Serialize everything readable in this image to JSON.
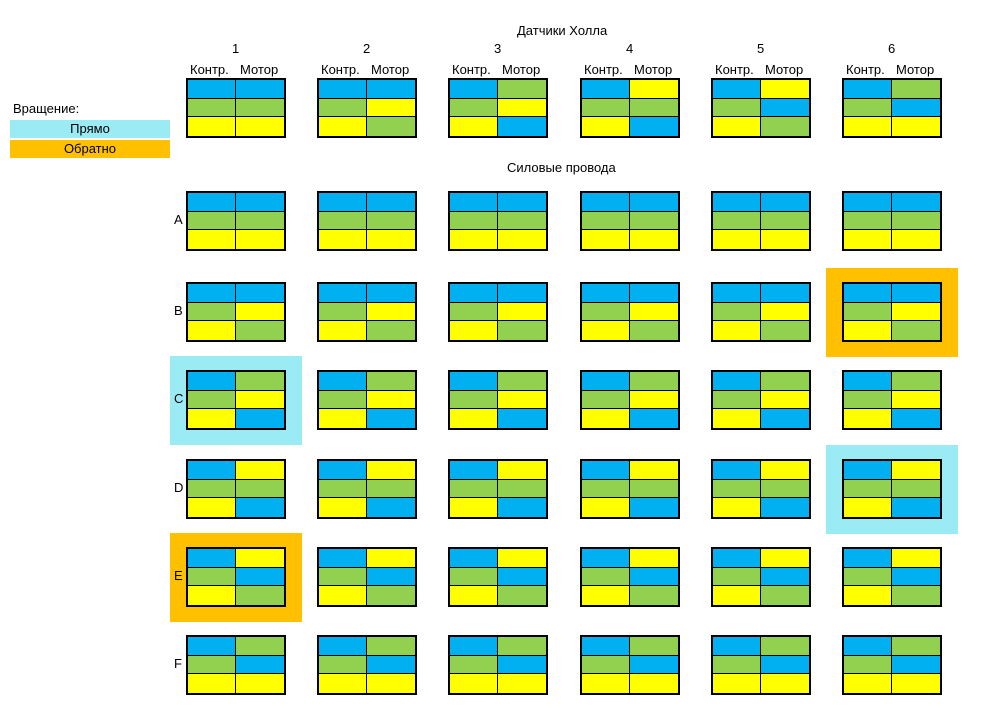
{
  "colors": {
    "B": "#00b0f0",
    "G": "#92d050",
    "Y": "#ffff00",
    "forward": "#9bebf5",
    "reverse": "#ffc000"
  },
  "hall_title": "Датчики Холла",
  "power_title": "Силовые провода",
  "legend": {
    "title": "Вращение:",
    "forward": "Прямо",
    "reverse": "Обратно"
  },
  "hall_columns": [
    {
      "num": "1",
      "left": "Контр.",
      "right": "Мотор",
      "rows": [
        [
          "B",
          "B"
        ],
        [
          "G",
          "G"
        ],
        [
          "Y",
          "Y"
        ]
      ]
    },
    {
      "num": "2",
      "left": "Контр.",
      "right": "Мотор",
      "rows": [
        [
          "B",
          "B"
        ],
        [
          "G",
          "Y"
        ],
        [
          "Y",
          "G"
        ]
      ]
    },
    {
      "num": "3",
      "left": "Контр.",
      "right": "Мотор",
      "rows": [
        [
          "B",
          "G"
        ],
        [
          "G",
          "Y"
        ],
        [
          "Y",
          "B"
        ]
      ]
    },
    {
      "num": "4",
      "left": "Контр.",
      "right": "Мотор",
      "rows": [
        [
          "B",
          "Y"
        ],
        [
          "G",
          "G"
        ],
        [
          "Y",
          "B"
        ]
      ]
    },
    {
      "num": "5",
      "left": "Контр.",
      "right": "Мотор",
      "rows": [
        [
          "B",
          "Y"
        ],
        [
          "G",
          "B"
        ],
        [
          "Y",
          "G"
        ]
      ]
    },
    {
      "num": "6",
      "left": "Контр.",
      "right": "Мотор",
      "rows": [
        [
          "B",
          "G"
        ],
        [
          "G",
          "B"
        ],
        [
          "Y",
          "Y"
        ]
      ]
    }
  ],
  "power_rows": [
    {
      "label": "A",
      "pattern": [
        [
          "B",
          "B"
        ],
        [
          "G",
          "G"
        ],
        [
          "Y",
          "Y"
        ]
      ],
      "highlights": [
        "",
        "",
        "",
        "",
        "",
        ""
      ]
    },
    {
      "label": "B",
      "pattern": [
        [
          "B",
          "B"
        ],
        [
          "G",
          "Y"
        ],
        [
          "Y",
          "G"
        ]
      ],
      "highlights": [
        "",
        "",
        "",
        "",
        "",
        "reverse"
      ]
    },
    {
      "label": "C",
      "pattern": [
        [
          "B",
          "G"
        ],
        [
          "G",
          "Y"
        ],
        [
          "Y",
          "B"
        ]
      ],
      "highlights": [
        "forward",
        "",
        "",
        "",
        "",
        ""
      ]
    },
    {
      "label": "D",
      "pattern": [
        [
          "B",
          "Y"
        ],
        [
          "G",
          "G"
        ],
        [
          "Y",
          "B"
        ]
      ],
      "highlights": [
        "",
        "",
        "",
        "",
        "",
        "forward"
      ]
    },
    {
      "label": "E",
      "pattern": [
        [
          "B",
          "Y"
        ],
        [
          "G",
          "B"
        ],
        [
          "Y",
          "G"
        ]
      ],
      "highlights": [
        "reverse",
        "",
        "",
        "",
        "",
        ""
      ]
    },
    {
      "label": "F",
      "pattern": [
        [
          "B",
          "G"
        ],
        [
          "G",
          "B"
        ],
        [
          "Y",
          "Y"
        ]
      ],
      "highlights": [
        "",
        "",
        "",
        "",
        "",
        ""
      ]
    }
  ]
}
